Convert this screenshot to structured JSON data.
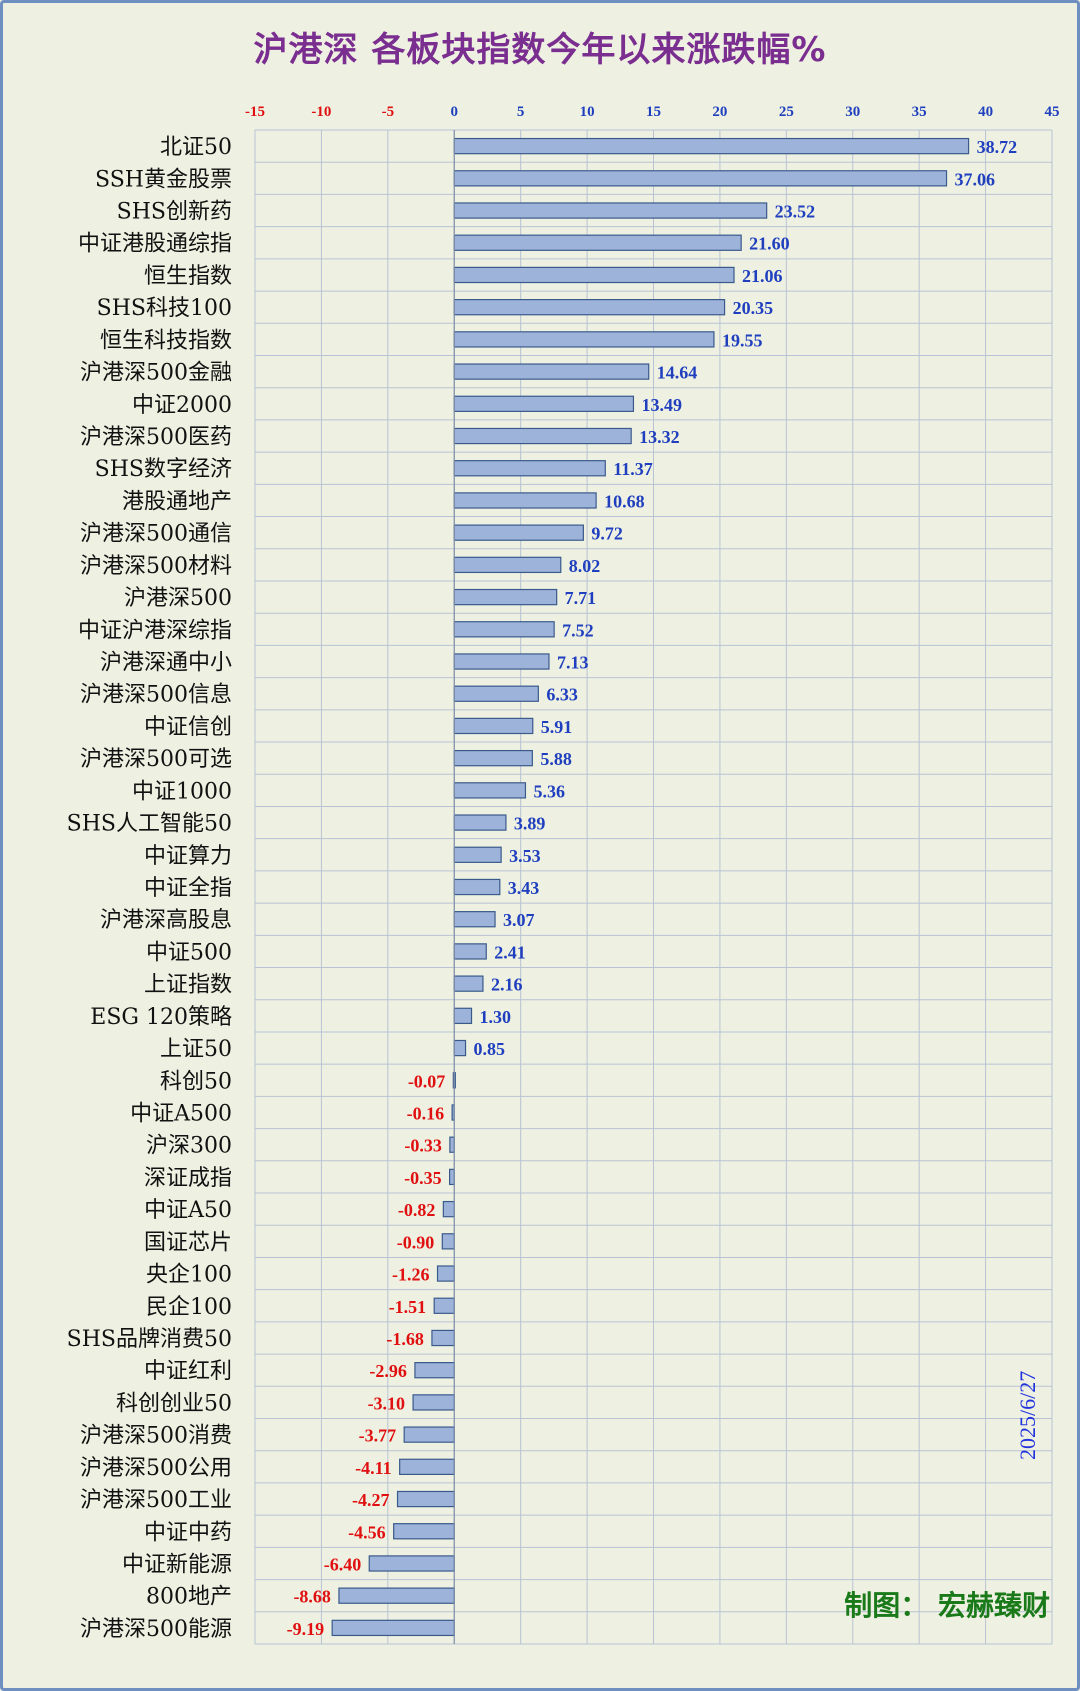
{
  "chart_data": {
    "type": "bar",
    "orientation": "horizontal",
    "title": "沪港深 各板块指数今年以来涨跌幅%",
    "xlim": [
      -15,
      45
    ],
    "xticks": [
      -15,
      -10,
      -5,
      0,
      5,
      10,
      15,
      20,
      25,
      30,
      35,
      40,
      45
    ],
    "grid": true,
    "categories": [
      "北证50",
      "SSH黄金股票",
      "SHS创新药",
      "中证港股通综指",
      "恒生指数",
      "SHS科技100",
      "恒生科技指数",
      "沪港深500金融",
      "中证2000",
      "沪港深500医药",
      "SHS数字经济",
      "港股通地产",
      "沪港深500通信",
      "沪港深500材料",
      "沪港深500",
      "中证沪港深综指",
      "沪港深通中小",
      "沪港深500信息",
      "中证信创",
      "沪港深500可选",
      "中证1000",
      "SHS人工智能50",
      "中证算力",
      "中证全指",
      "沪港深高股息",
      "中证500",
      "上证指数",
      "ESG 120策略",
      "上证50",
      "科创50",
      "中证A500",
      "沪深300",
      "深证成指",
      "中证A50",
      "国证芯片",
      "央企100",
      "民企100",
      "SHS品牌消费50",
      "中证红利",
      "科创创业50",
      "沪港深500消费",
      "沪港深500公用",
      "沪港深500工业",
      "中证中药",
      "中证新能源",
      "800地产",
      "沪港深500能源"
    ],
    "value_labels": [
      "38.72",
      "37.06",
      "23.52",
      "21.60",
      "21.06",
      "20.35",
      "19.55",
      "14.64",
      "13.49",
      "13.32",
      "11.37",
      "10.68",
      "9.72",
      "8.02",
      "7.71",
      "7.52",
      "7.13",
      "6.33",
      "5.91",
      "5.88",
      "5.36",
      "3.89",
      "3.53",
      "3.43",
      "3.07",
      "2.41",
      "2.16",
      "1.30",
      "0.85",
      "-0.07",
      "-0.16",
      "-0.33",
      "-0.35",
      "-0.82",
      "-0.90",
      "-1.26",
      "-1.51",
      "-1.68",
      "-2.96",
      "-3.10",
      "-3.77",
      "-4.11",
      "-4.27",
      "-4.56",
      "-6.40",
      "-8.68",
      "-9.19"
    ],
    "values": [
      38.72,
      37.06,
      23.52,
      21.6,
      21.06,
      20.35,
      19.55,
      14.64,
      13.49,
      13.32,
      11.37,
      10.68,
      9.72,
      8.02,
      7.71,
      7.52,
      7.13,
      6.33,
      5.91,
      5.88,
      5.36,
      3.89,
      3.53,
      3.43,
      3.07,
      2.41,
      2.16,
      1.3,
      0.85,
      -0.07,
      -0.16,
      -0.33,
      -0.35,
      -0.82,
      -0.9,
      -1.26,
      -1.51,
      -1.68,
      -2.96,
      -3.1,
      -3.77,
      -4.11,
      -4.27,
      -4.56,
      -6.4,
      -8.68,
      -9.19
    ]
  },
  "date_label": "2025/6/27",
  "credit": "制图：  宏赫臻财",
  "colors": {
    "background": "#eef1e2",
    "border": "#6e8fc0",
    "title": "#7a2e8f",
    "bar_fill": "#9db3d9",
    "bar_stroke": "#3a5a8c",
    "positive_label": "#1f3fbf",
    "negative_label": "#e01010",
    "negative_tick": "#e01010",
    "positive_tick": "#1f3fbf",
    "grid": "#b8c2d4",
    "date": "#2233dd",
    "credit": "#1a7a1a"
  }
}
